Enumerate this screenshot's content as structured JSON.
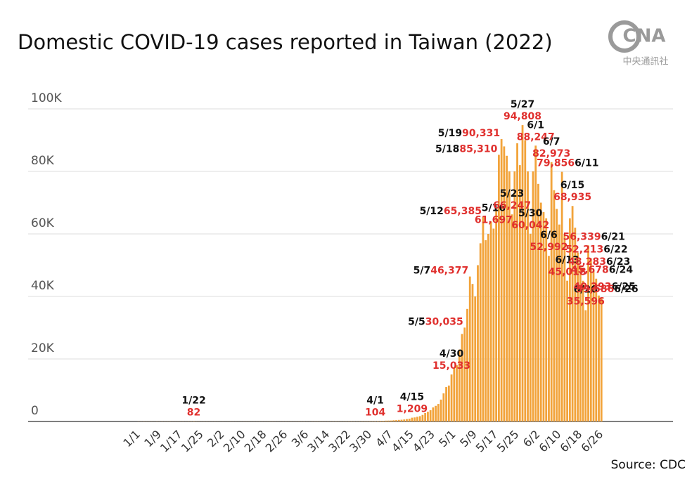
{
  "chart_data": {
    "type": "bar",
    "title": "Domestic COVID-19 cases reported in Taiwan (2022)",
    "source": "Source: CDC",
    "logo": {
      "mark": "CNA",
      "name": "中央通訊社"
    },
    "color": "#f2a33a",
    "label_color": "#e0302e",
    "grid": true,
    "ylim": [
      0,
      100000
    ],
    "yticks": [
      0,
      {
        "value": 20000,
        "label": "20K"
      },
      {
        "value": 40000,
        "label": "40K"
      },
      {
        "value": 60000,
        "label": "60K"
      },
      {
        "value": 80000,
        "label": "80K"
      },
      {
        "value": 100000,
        "label": "100K"
      }
    ],
    "categories": [
      "1/1",
      null,
      null,
      null,
      null,
      null,
      null,
      null,
      "1/9",
      null,
      null,
      null,
      null,
      null,
      null,
      null,
      "1/17",
      null,
      null,
      null,
      null,
      null,
      null,
      null,
      "1/25",
      null,
      null,
      null,
      null,
      null,
      null,
      null,
      "2/2",
      null,
      null,
      null,
      null,
      null,
      null,
      null,
      "2/10",
      null,
      null,
      null,
      null,
      null,
      null,
      null,
      "2/18",
      null,
      null,
      null,
      null,
      null,
      null,
      null,
      "2/26",
      null,
      null,
      null,
      null,
      null,
      null,
      null,
      "3/6",
      null,
      null,
      null,
      null,
      null,
      null,
      null,
      "3/14",
      null,
      null,
      null,
      null,
      null,
      null,
      null,
      "3/22",
      null,
      null,
      null,
      null,
      null,
      null,
      null,
      "3/30",
      null,
      null,
      null,
      null,
      null,
      null,
      null,
      "4/7",
      null,
      null,
      null,
      null,
      null,
      null,
      null,
      "4/15",
      null,
      null,
      null,
      null,
      null,
      null,
      null,
      "4/23",
      null,
      null,
      null,
      null,
      null,
      null,
      null,
      "5/1",
      null,
      null,
      null,
      null,
      null,
      null,
      null,
      "5/9",
      null,
      null,
      null,
      null,
      null,
      null,
      null,
      "5/17",
      null,
      null,
      null,
      null,
      null,
      null,
      null,
      "5/25",
      null,
      null,
      null,
      null,
      null,
      null,
      null,
      "6/2",
      null,
      null,
      null,
      null,
      null,
      null,
      null,
      "6/10",
      null,
      null,
      null,
      null,
      null,
      null,
      null,
      "6/18",
      null,
      null,
      null,
      null,
      null,
      null,
      null,
      "6/26"
    ],
    "values": [
      30,
      25,
      40,
      35,
      28,
      31,
      20,
      45,
      30,
      38,
      33,
      36,
      42,
      28,
      30,
      25,
      35,
      40,
      30,
      45,
      60,
      82,
      55,
      40,
      30,
      35,
      38,
      30,
      25,
      33,
      28,
      20,
      25,
      18,
      22,
      30,
      28,
      25,
      20,
      24,
      30,
      35,
      28,
      22,
      26,
      30,
      32,
      28,
      25,
      30,
      35,
      40,
      32,
      28,
      30,
      35,
      38,
      30,
      33,
      30,
      35,
      40,
      38,
      42,
      35,
      30,
      40,
      45,
      50,
      42,
      38,
      35,
      40,
      45,
      50,
      55,
      48,
      42,
      50,
      55,
      60,
      65,
      58,
      52,
      60,
      70,
      75,
      80,
      85,
      95,
      104,
      130,
      180,
      200,
      260,
      280,
      300,
      380,
      420,
      500,
      560,
      640,
      780,
      900,
      1209,
      1300,
      1500,
      1700,
      2100,
      2700,
      3100,
      3600,
      4500,
      5000,
      5600,
      7000,
      9000,
      11000,
      11500,
      15033,
      17000,
      18000,
      23000,
      28000,
      30035,
      36000,
      46377,
      44000,
      40000,
      50000,
      57000,
      65385,
      58000,
      60000,
      64000,
      61697,
      68000,
      85310,
      90331,
      88000,
      85000,
      80000,
      66247,
      80000,
      89000,
      82000,
      94808,
      90000,
      80000,
      60042,
      80000,
      88247,
      76000,
      70000,
      67000,
      65000,
      52992,
      82973,
      74000,
      68000,
      63000,
      79856,
      60000,
      45018,
      65000,
      68935,
      62000,
      54000,
      50000,
      45000,
      35596,
      56339,
      52213,
      48283,
      45678,
      40293,
      39586
    ],
    "value_labels": [
      null,
      null,
      null,
      null,
      null,
      null,
      null,
      null,
      null,
      null,
      null,
      null,
      null,
      null,
      null,
      null,
      null,
      null,
      null,
      null,
      null,
      "82",
      null,
      null,
      null,
      null,
      null,
      null,
      null,
      null,
      null,
      null,
      null,
      null,
      null,
      null,
      null,
      null,
      null,
      null,
      null,
      null,
      null,
      null,
      null,
      null,
      null,
      null,
      null,
      null,
      null,
      null,
      null,
      null,
      null,
      null,
      null,
      null,
      null,
      null,
      null,
      null,
      null,
      null,
      null,
      null,
      null,
      null,
      null,
      null,
      null,
      null,
      null,
      null,
      null,
      null,
      null,
      null,
      null,
      null,
      null,
      null,
      null,
      null,
      null,
      null,
      null,
      null,
      null,
      null,
      "104",
      null,
      null,
      null,
      null,
      null,
      null,
      null,
      null,
      null,
      null,
      null,
      null,
      null,
      "1,209",
      null,
      null,
      null,
      null,
      null,
      null,
      null,
      null,
      null,
      null,
      null,
      null,
      null,
      null,
      "15,033",
      null,
      null,
      null,
      null,
      "30,035",
      null,
      "46,377",
      null,
      null,
      null,
      null,
      "65,385",
      null,
      null,
      null,
      "61,697",
      null,
      "85,310",
      "90,331",
      null,
      null,
      null,
      "66,247",
      null,
      null,
      null,
      "94,808",
      null,
      null,
      "60,042",
      null,
      "88,247",
      null,
      null,
      null,
      null,
      "52,992",
      "82,973",
      null,
      null,
      null,
      "79,856",
      null,
      "45,018",
      null,
      "68,935",
      null,
      null,
      null,
      null,
      "35,596",
      "56,339",
      "52,213",
      "48,283",
      "45,678",
      "40,293",
      "39,586"
    ],
    "bar_labels": [
      null,
      null,
      null,
      null,
      null,
      null,
      null,
      null,
      null,
      null,
      null,
      null,
      null,
      null,
      null,
      null,
      null,
      null,
      null,
      null,
      null,
      "1/22",
      null,
      null,
      null,
      null,
      null,
      null,
      null,
      null,
      null,
      null,
      null,
      null,
      null,
      null,
      null,
      null,
      null,
      null,
      null,
      null,
      null,
      null,
      null,
      null,
      null,
      null,
      null,
      null,
      null,
      null,
      null,
      null,
      null,
      null,
      null,
      null,
      null,
      null,
      null,
      null,
      null,
      null,
      null,
      null,
      null,
      null,
      null,
      null,
      null,
      null,
      null,
      null,
      null,
      null,
      null,
      null,
      null,
      null,
      null,
      null,
      null,
      null,
      null,
      null,
      null,
      null,
      null,
      null,
      "4/1",
      null,
      null,
      null,
      null,
      null,
      null,
      null,
      null,
      null,
      null,
      null,
      null,
      null,
      "4/15",
      null,
      null,
      null,
      null,
      null,
      null,
      null,
      null,
      null,
      null,
      null,
      null,
      null,
      null,
      "4/30",
      null,
      null,
      null,
      null,
      "5/5",
      null,
      "5/7",
      null,
      null,
      null,
      null,
      "5/12",
      null,
      null,
      null,
      "5/16",
      null,
      "5/18",
      "5/19",
      null,
      null,
      null,
      "5/23",
      null,
      null,
      null,
      "5/27",
      null,
      null,
      "5/30",
      null,
      "6/1",
      null,
      null,
      null,
      null,
      "6/6",
      "6/7",
      null,
      null,
      null,
      "6/11",
      null,
      "6/13",
      null,
      "6/15",
      null,
      null,
      null,
      null,
      "6/20",
      "6/21",
      "6/22",
      "6/23",
      "6/24",
      "6/25",
      "6/26"
    ]
  }
}
